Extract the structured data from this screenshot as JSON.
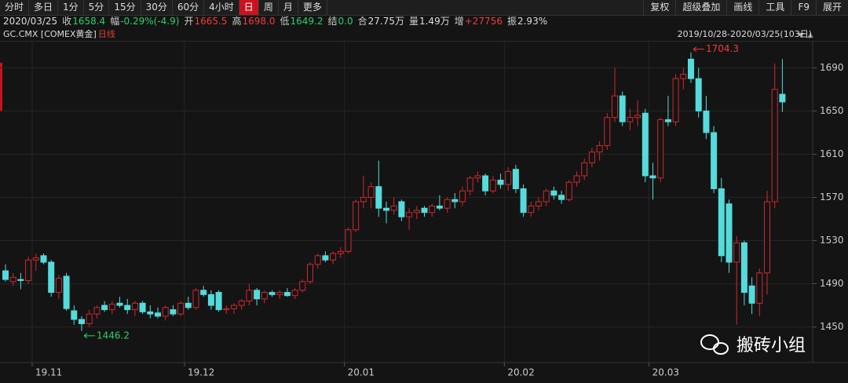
{
  "toolbar": {
    "tabs": [
      "分时",
      "多日",
      "1分",
      "5分",
      "15分",
      "30分",
      "60分",
      "4小时",
      "日",
      "周",
      "月",
      "更多"
    ],
    "active": 8,
    "tools": [
      "复权",
      "超级叠加",
      "画线",
      "工具",
      "F9",
      "展开"
    ]
  },
  "quote": {
    "date": "2020/03/25",
    "items": [
      {
        "label": "收",
        "value": "1658.4",
        "color": "#2bd16a"
      },
      {
        "label": "幅",
        "value": "-0.29%(-4.9)",
        "color": "#2bd16a"
      },
      {
        "label": "开",
        "value": "1665.5",
        "color": "#f03c3c"
      },
      {
        "label": "高",
        "value": "1698.0",
        "color": "#f03c3c"
      },
      {
        "label": "低",
        "value": "1649.2",
        "color": "#2bd16a"
      },
      {
        "label": "结",
        "value": "0.0",
        "color": "#2bd16a"
      },
      {
        "label": "合",
        "value": "27.75万",
        "color": "#dddddd"
      },
      {
        "label": "量",
        "value": "1.49万",
        "color": "#dddddd"
      },
      {
        "label": "增",
        "value": "+27756",
        "color": "#f03c3c"
      },
      {
        "label": "振",
        "value": "2.93%",
        "color": "#dddddd"
      }
    ]
  },
  "symbol": "GC.CMX [COMEX黄金]",
  "period": "日线",
  "range": "2019/10/28-2020/03/25(103日)",
  "watermark": "搬砖小组",
  "chart_data": {
    "type": "candlestick",
    "up_color": "#d0282e",
    "down_color": "#55dbdb",
    "categories": [
      null,
      null,
      null,
      null,
      "19.11",
      null,
      null,
      null,
      null,
      null,
      null,
      null,
      null,
      null,
      null,
      null,
      null,
      null,
      null,
      null,
      null,
      null,
      null,
      null,
      "19.12",
      null,
      null,
      null,
      null,
      null,
      null,
      null,
      null,
      null,
      null,
      null,
      null,
      null,
      null,
      null,
      null,
      null,
      null,
      null,
      null,
      "20.01",
      null,
      null,
      null,
      null,
      null,
      null,
      null,
      null,
      null,
      null,
      null,
      null,
      null,
      null,
      null,
      null,
      null,
      null,
      null,
      null,
      "20.02",
      null,
      null,
      null,
      null,
      null,
      null,
      null,
      null,
      null,
      null,
      null,
      null,
      null,
      null,
      null,
      null,
      null,
      null,
      "20.03",
      null,
      null,
      null,
      null,
      null,
      null,
      null,
      null,
      null,
      null,
      null,
      null,
      null,
      null,
      null,
      null,
      null
    ],
    "open": [
      1502,
      1492,
      1494,
      1493,
      1512,
      1516,
      1510,
      1482,
      1497,
      1465,
      1457,
      1453,
      1462,
      1470,
      1466,
      1472,
      1470,
      1466,
      1472,
      1464,
      1463,
      1460,
      1466,
      1462,
      1472,
      1468,
      1484,
      1480,
      1482,
      1466,
      1467,
      1470,
      1474,
      1484,
      1476,
      1482,
      1480,
      1482,
      1479,
      1484,
      1492,
      1508,
      1516,
      1512,
      1518,
      1520,
      1540,
      1566,
      1570,
      1580,
      1560,
      1558,
      1566,
      1552,
      1556,
      1560,
      1556,
      1562,
      1560,
      1568,
      1566,
      1576,
      1588,
      1590,
      1576,
      1586,
      1582,
      1596,
      1578,
      1556,
      1562,
      1566,
      1576,
      1572,
      1568,
      1584,
      1590,
      1602,
      1612,
      1618,
      1644,
      1664,
      1640,
      1644,
      1648,
      1590,
      1588,
      1642,
      1640,
      1680,
      1698,
      1680,
      1650,
      1630,
      1578,
      1564,
      1510,
      1528,
      1488,
      1472,
      1500,
      1566,
      1665.5
    ],
    "high": [
      1508,
      1500,
      1500,
      1515,
      1518,
      1518,
      1512,
      1498,
      1500,
      1470,
      1460,
      1466,
      1470,
      1474,
      1474,
      1478,
      1476,
      1474,
      1474,
      1470,
      1468,
      1470,
      1470,
      1474,
      1478,
      1486,
      1488,
      1484,
      1484,
      1470,
      1472,
      1476,
      1490,
      1486,
      1484,
      1484,
      1484,
      1486,
      1486,
      1494,
      1510,
      1518,
      1520,
      1520,
      1524,
      1542,
      1568,
      1590,
      1584,
      1604,
      1566,
      1570,
      1568,
      1560,
      1562,
      1562,
      1564,
      1572,
      1570,
      1574,
      1580,
      1590,
      1594,
      1592,
      1590,
      1592,
      1598,
      1600,
      1582,
      1566,
      1570,
      1578,
      1580,
      1576,
      1586,
      1594,
      1606,
      1616,
      1622,
      1648,
      1690,
      1668,
      1652,
      1660,
      1652,
      1602,
      1644,
      1664,
      1684,
      1690,
      1704.3,
      1690,
      1664,
      1636,
      1588,
      1568,
      1534,
      1530,
      1496,
      1504,
      1576,
      1694,
      1698.0
    ],
    "low": [
      1492,
      1488,
      1485,
      1490,
      1502,
      1508,
      1478,
      1476,
      1465,
      1452,
      1446.2,
      1450,
      1458,
      1464,
      1462,
      1468,
      1462,
      1460,
      1462,
      1458,
      1458,
      1456,
      1460,
      1460,
      1466,
      1466,
      1478,
      1466,
      1464,
      1462,
      1462,
      1466,
      1470,
      1470,
      1472,
      1478,
      1476,
      1478,
      1476,
      1482,
      1490,
      1504,
      1510,
      1508,
      1514,
      1518,
      1538,
      1560,
      1560,
      1552,
      1546,
      1554,
      1548,
      1540,
      1550,
      1552,
      1552,
      1558,
      1556,
      1560,
      1562,
      1572,
      1584,
      1572,
      1574,
      1578,
      1576,
      1574,
      1552,
      1552,
      1558,
      1562,
      1568,
      1564,
      1566,
      1580,
      1586,
      1598,
      1604,
      1614,
      1640,
      1636,
      1632,
      1636,
      1584,
      1568,
      1584,
      1636,
      1636,
      1670,
      1676,
      1644,
      1624,
      1574,
      1510,
      1500,
      1452,
      1470,
      1462,
      1460,
      1480,
      1560,
      1649.2
    ],
    "close": [
      1494,
      1496,
      1493,
      1512,
      1514,
      1510,
      1482,
      1495,
      1467,
      1457,
      1453,
      1462,
      1468,
      1466,
      1471,
      1470,
      1466,
      1472,
      1464,
      1462,
      1460,
      1468,
      1462,
      1472,
      1468,
      1484,
      1480,
      1470,
      1466,
      1467,
      1470,
      1474,
      1484,
      1476,
      1482,
      1480,
      1482,
      1479,
      1484,
      1492,
      1508,
      1516,
      1512,
      1518,
      1520,
      1540,
      1566,
      1570,
      1580,
      1560,
      1558,
      1562,
      1552,
      1556,
      1558,
      1556,
      1562,
      1560,
      1568,
      1566,
      1576,
      1588,
      1590,
      1576,
      1586,
      1582,
      1594,
      1578,
      1556,
      1562,
      1566,
      1576,
      1572,
      1568,
      1584,
      1590,
      1602,
      1612,
      1618,
      1644,
      1664,
      1640,
      1644,
      1646,
      1590,
      1588,
      1642,
      1640,
      1680,
      1684,
      1680,
      1650,
      1630,
      1578,
      1516,
      1510,
      1528,
      1482,
      1472,
      1500,
      1566,
      1670,
      1658.4
    ],
    "ylim": [
      1417,
      1715
    ],
    "yticks": [
      1450,
      1490,
      1530,
      1570,
      1610,
      1650,
      1690
    ],
    "grid": true
  }
}
